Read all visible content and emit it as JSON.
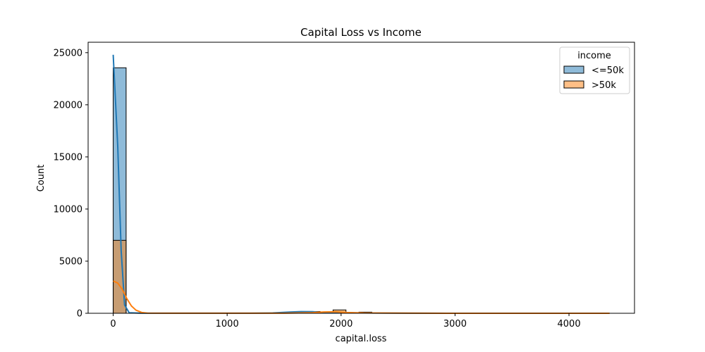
{
  "chart_data": {
    "type": "histogram",
    "title": "Capital Loss vs Income",
    "xlabel": "capital.loss",
    "ylabel": "Count",
    "xlim": [
      -220,
      4575
    ],
    "ylim": [
      0,
      26000
    ],
    "x_ticks": [
      0,
      1000,
      2000,
      3000,
      4000
    ],
    "y_ticks": [
      0,
      5000,
      10000,
      15000,
      20000,
      25000
    ],
    "grid": false,
    "legend": {
      "title": "income",
      "placement": "top-right"
    },
    "bin_width": 113.5,
    "bins_start": 0,
    "series": [
      {
        "name": "<=50k",
        "color": "#1f77b4",
        "values": [
          23550,
          0,
          0,
          0,
          0,
          0,
          0,
          0,
          0,
          0,
          0,
          8,
          10,
          90,
          130,
          170,
          60,
          12,
          15,
          110,
          25,
          25,
          5,
          3,
          2,
          2,
          0,
          0,
          2,
          2,
          0,
          0,
          0,
          0,
          0,
          0,
          0,
          0
        ],
        "kde": [
          [
            0,
            24800
          ],
          [
            40,
            16000
          ],
          [
            70,
            6000
          ],
          [
            100,
            800
          ],
          [
            140,
            50
          ],
          [
            250,
            8
          ],
          [
            1200,
            10
          ],
          [
            1400,
            30
          ],
          [
            1550,
            120
          ],
          [
            1650,
            160
          ],
          [
            1750,
            150
          ],
          [
            1850,
            70
          ],
          [
            1950,
            40
          ],
          [
            2050,
            60
          ],
          [
            2150,
            35
          ],
          [
            2300,
            25
          ],
          [
            2600,
            8
          ],
          [
            3000,
            2
          ],
          [
            4356,
            0
          ]
        ]
      },
      {
        "name": ">50k",
        "color": "#ff7f0e",
        "values": [
          7000,
          0,
          0,
          0,
          0,
          0,
          0,
          0,
          0,
          0,
          0,
          0,
          0,
          0,
          3,
          8,
          20,
          320,
          70,
          5,
          2,
          10,
          2,
          1,
          0,
          0,
          0,
          0,
          0,
          0,
          0,
          0,
          0,
          0,
          0,
          0,
          0,
          0
        ],
        "kde": [
          [
            0,
            3100
          ],
          [
            40,
            2900
          ],
          [
            80,
            2300
          ],
          [
            120,
            1400
          ],
          [
            160,
            700
          ],
          [
            200,
            300
          ],
          [
            250,
            80
          ],
          [
            300,
            20
          ],
          [
            500,
            5
          ],
          [
            1500,
            10
          ],
          [
            1750,
            60
          ],
          [
            1850,
            130
          ],
          [
            1950,
            140
          ],
          [
            2050,
            80
          ],
          [
            2200,
            30
          ],
          [
            2500,
            15
          ],
          [
            3000,
            2
          ],
          [
            4356,
            0
          ]
        ]
      }
    ]
  }
}
